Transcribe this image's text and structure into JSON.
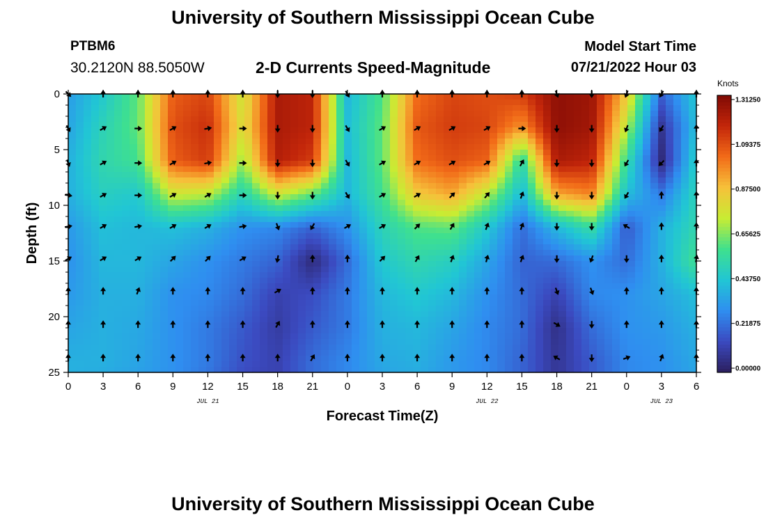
{
  "header": {
    "title": "University of Southern Mississippi Ocean Cube",
    "station": "PTBM6",
    "coordinates": "30.2120N  88.5050W",
    "subtitle": "2-D Currents Speed-Magnitude",
    "model_start_label": "Model Start Time",
    "model_start_value": "07/21/2022 Hour 03"
  },
  "footer": {
    "title": "University of Southern Mississippi Ocean Cube"
  },
  "colors": {
    "colormap": [
      "#2b1f5e",
      "#3b4ac0",
      "#2f8ef0",
      "#21c6d4",
      "#3fe08e",
      "#c8ec33",
      "#f6c13a",
      "#f26b18",
      "#c3260a",
      "#800a04"
    ]
  },
  "chart_data": {
    "type": "heatmap",
    "xlabel": "Forecast Time(Z)",
    "ylabel": "Depth (ft)",
    "x_ticks": [
      "0",
      "3",
      "6",
      "9",
      "12",
      "15",
      "18",
      "21",
      "0",
      "3",
      "6",
      "9",
      "12",
      "15",
      "18",
      "21",
      "0",
      "3",
      "6"
    ],
    "x_range_hours": [
      0,
      54
    ],
    "date_labels": [
      {
        "label": "JUL 21",
        "hour": 12
      },
      {
        "label": "JUL 22",
        "hour": 36
      },
      {
        "label": "JUL 23",
        "hour": 51
      }
    ],
    "y_ticks": [
      0,
      5,
      10,
      15,
      20,
      25
    ],
    "ylim": [
      0,
      25
    ],
    "y_reversed": true,
    "colorbar": {
      "unit": "Knots",
      "min": 0.0,
      "max": 1.3125,
      "ticks": [
        "1.31250",
        "1.09375",
        "0.87500",
        "0.65625",
        "0.43750",
        "0.21875",
        "0.00000"
      ]
    },
    "arrow_hours": [
      0,
      3,
      6,
      9,
      12,
      15,
      18,
      21,
      24,
      27,
      30,
      33,
      36,
      39,
      42,
      45,
      48,
      51,
      54
    ],
    "arrow_depths": [
      0,
      3.1,
      6.2,
      9.1,
      11.9,
      14.8,
      17.7,
      20.7,
      23.7
    ],
    "arrow_directions_deg": [
      [
        135,
        0,
        0,
        0,
        0,
        0,
        180,
        180,
        150,
        0,
        0,
        0,
        0,
        0,
        160,
        180,
        200,
        210,
        0
      ],
      [
        150,
        60,
        90,
        60,
        80,
        90,
        180,
        180,
        150,
        60,
        60,
        60,
        60,
        90,
        180,
        180,
        200,
        210,
        0
      ],
      [
        160,
        60,
        90,
        60,
        80,
        90,
        180,
        180,
        150,
        60,
        60,
        60,
        60,
        30,
        180,
        180,
        210,
        225,
        0
      ],
      [
        100,
        60,
        90,
        60,
        60,
        90,
        180,
        180,
        150,
        60,
        60,
        45,
        40,
        20,
        180,
        180,
        210,
        0,
        0
      ],
      [
        80,
        60,
        80,
        60,
        60,
        80,
        160,
        210,
        60,
        60,
        45,
        30,
        20,
        20,
        180,
        180,
        300,
        0,
        0
      ],
      [
        60,
        60,
        60,
        45,
        45,
        60,
        190,
        0,
        0,
        45,
        30,
        20,
        15,
        20,
        180,
        200,
        180,
        0,
        10
      ],
      [
        0,
        0,
        20,
        0,
        0,
        0,
        60,
        0,
        0,
        0,
        0,
        0,
        0,
        0,
        160,
        160,
        0,
        0,
        0
      ],
      [
        0,
        0,
        0,
        0,
        0,
        0,
        30,
        0,
        0,
        0,
        0,
        0,
        0,
        0,
        120,
        180,
        0,
        0,
        0
      ],
      [
        0,
        0,
        0,
        0,
        0,
        0,
        0,
        30,
        0,
        0,
        0,
        0,
        0,
        0,
        300,
        180,
        70,
        20,
        0
      ]
    ],
    "speed_grid_hours": [
      0,
      3,
      6,
      9,
      12,
      15,
      18,
      21,
      24,
      27,
      30,
      33,
      36,
      39,
      42,
      45,
      48,
      51,
      54
    ],
    "speed_grid_depths": [
      0,
      3,
      6,
      9,
      12,
      15,
      18,
      21,
      24,
      25
    ],
    "speed_grid_knots": [
      [
        0.33,
        0.45,
        0.62,
        1.05,
        1.1,
        0.75,
        1.22,
        1.18,
        0.4,
        0.6,
        1.02,
        1.1,
        1.08,
        1.12,
        1.28,
        1.25,
        0.85,
        0.2,
        0.45
      ],
      [
        0.35,
        0.5,
        0.62,
        1.08,
        1.15,
        0.78,
        1.22,
        1.18,
        0.42,
        0.62,
        1.06,
        1.12,
        1.1,
        0.95,
        1.28,
        1.24,
        0.72,
        0.08,
        0.42
      ],
      [
        0.38,
        0.52,
        0.58,
        1.05,
        1.12,
        0.68,
        1.2,
        1.12,
        0.4,
        0.62,
        1.02,
        1.08,
        1.04,
        0.52,
        1.22,
        1.18,
        0.55,
        0.04,
        0.48
      ],
      [
        0.38,
        0.48,
        0.45,
        0.75,
        0.72,
        0.5,
        0.75,
        0.62,
        0.4,
        0.58,
        0.85,
        0.92,
        0.72,
        0.4,
        0.92,
        0.98,
        0.42,
        0.25,
        0.5
      ],
      [
        0.32,
        0.42,
        0.4,
        0.42,
        0.38,
        0.3,
        0.28,
        0.2,
        0.3,
        0.5,
        0.6,
        0.62,
        0.45,
        0.22,
        0.4,
        0.55,
        0.18,
        0.38,
        0.52
      ],
      [
        0.3,
        0.4,
        0.4,
        0.35,
        0.3,
        0.25,
        0.2,
        0.04,
        0.22,
        0.45,
        0.52,
        0.48,
        0.35,
        0.2,
        0.22,
        0.3,
        0.22,
        0.38,
        0.58
      ],
      [
        0.32,
        0.38,
        0.38,
        0.3,
        0.28,
        0.22,
        0.12,
        0.15,
        0.25,
        0.4,
        0.45,
        0.4,
        0.3,
        0.22,
        0.12,
        0.28,
        0.3,
        0.35,
        0.42
      ],
      [
        0.35,
        0.38,
        0.36,
        0.3,
        0.25,
        0.18,
        0.1,
        0.18,
        0.25,
        0.38,
        0.4,
        0.35,
        0.28,
        0.22,
        0.06,
        0.22,
        0.3,
        0.32,
        0.38
      ],
      [
        0.38,
        0.38,
        0.35,
        0.3,
        0.25,
        0.16,
        0.12,
        0.22,
        0.28,
        0.36,
        0.38,
        0.32,
        0.28,
        0.2,
        0.08,
        0.18,
        0.28,
        0.3,
        0.36
      ],
      [
        0.38,
        0.37,
        0.34,
        0.3,
        0.24,
        0.15,
        0.12,
        0.22,
        0.28,
        0.35,
        0.37,
        0.32,
        0.28,
        0.2,
        0.08,
        0.18,
        0.28,
        0.3,
        0.35
      ]
    ]
  }
}
